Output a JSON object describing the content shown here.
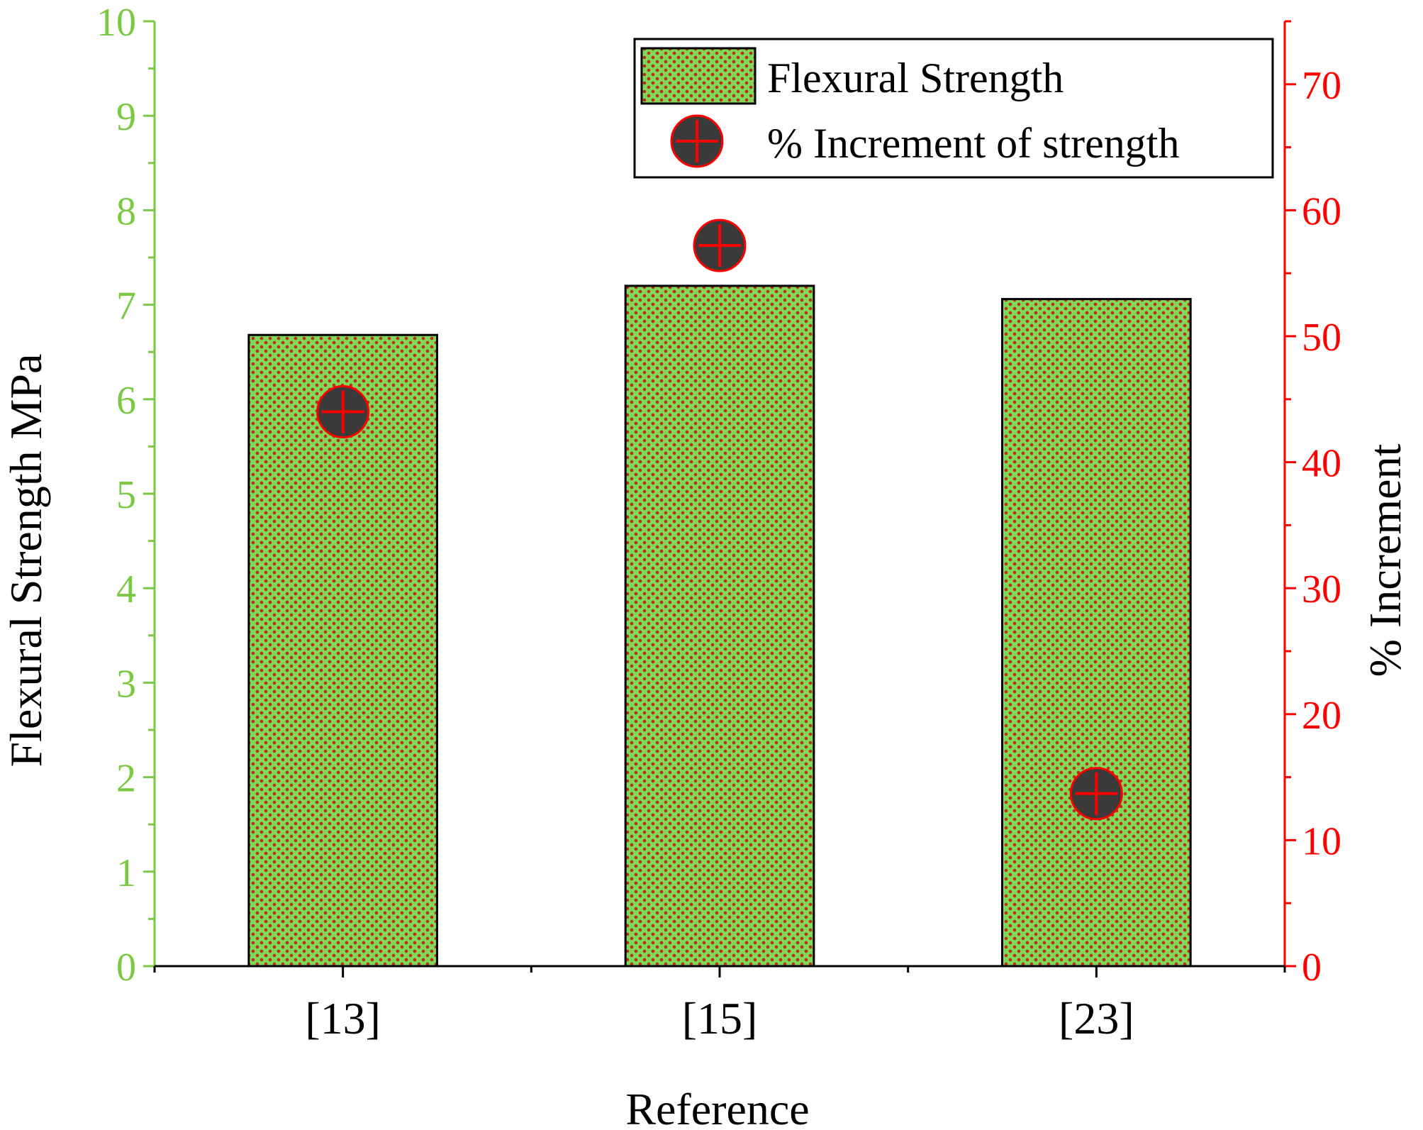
{
  "chart_data": {
    "type": "bar",
    "categories": [
      "[13]",
      "[15]",
      "[23]"
    ],
    "xlabel": "Reference",
    "ylabel": "Flexural Strength MPa",
    "y2label": "% Increment",
    "ylim": [
      0,
      10
    ],
    "y2lim": [
      0,
      75
    ],
    "yticks": [
      0,
      1,
      2,
      3,
      4,
      5,
      6,
      7,
      8,
      9,
      10
    ],
    "y2ticks": [
      0,
      10,
      20,
      30,
      40,
      50,
      60,
      70
    ],
    "series": [
      {
        "name": "Flexural Strength",
        "kind": "bar",
        "axis": "left",
        "values": [
          6.68,
          7.2,
          7.06
        ]
      },
      {
        "name": "% Increment of strength",
        "kind": "scatter",
        "axis": "right",
        "values": [
          44,
          57.2,
          13.7
        ]
      }
    ],
    "legend_position": "top-right",
    "colors": {
      "bar_fill": "#7ed957",
      "bar_dots": "#c0271d",
      "left_axis": "#7ac943",
      "right_axis": "#ff0000",
      "marker_fill": "#3a3a3a",
      "marker_edge": "#ff0000"
    }
  }
}
